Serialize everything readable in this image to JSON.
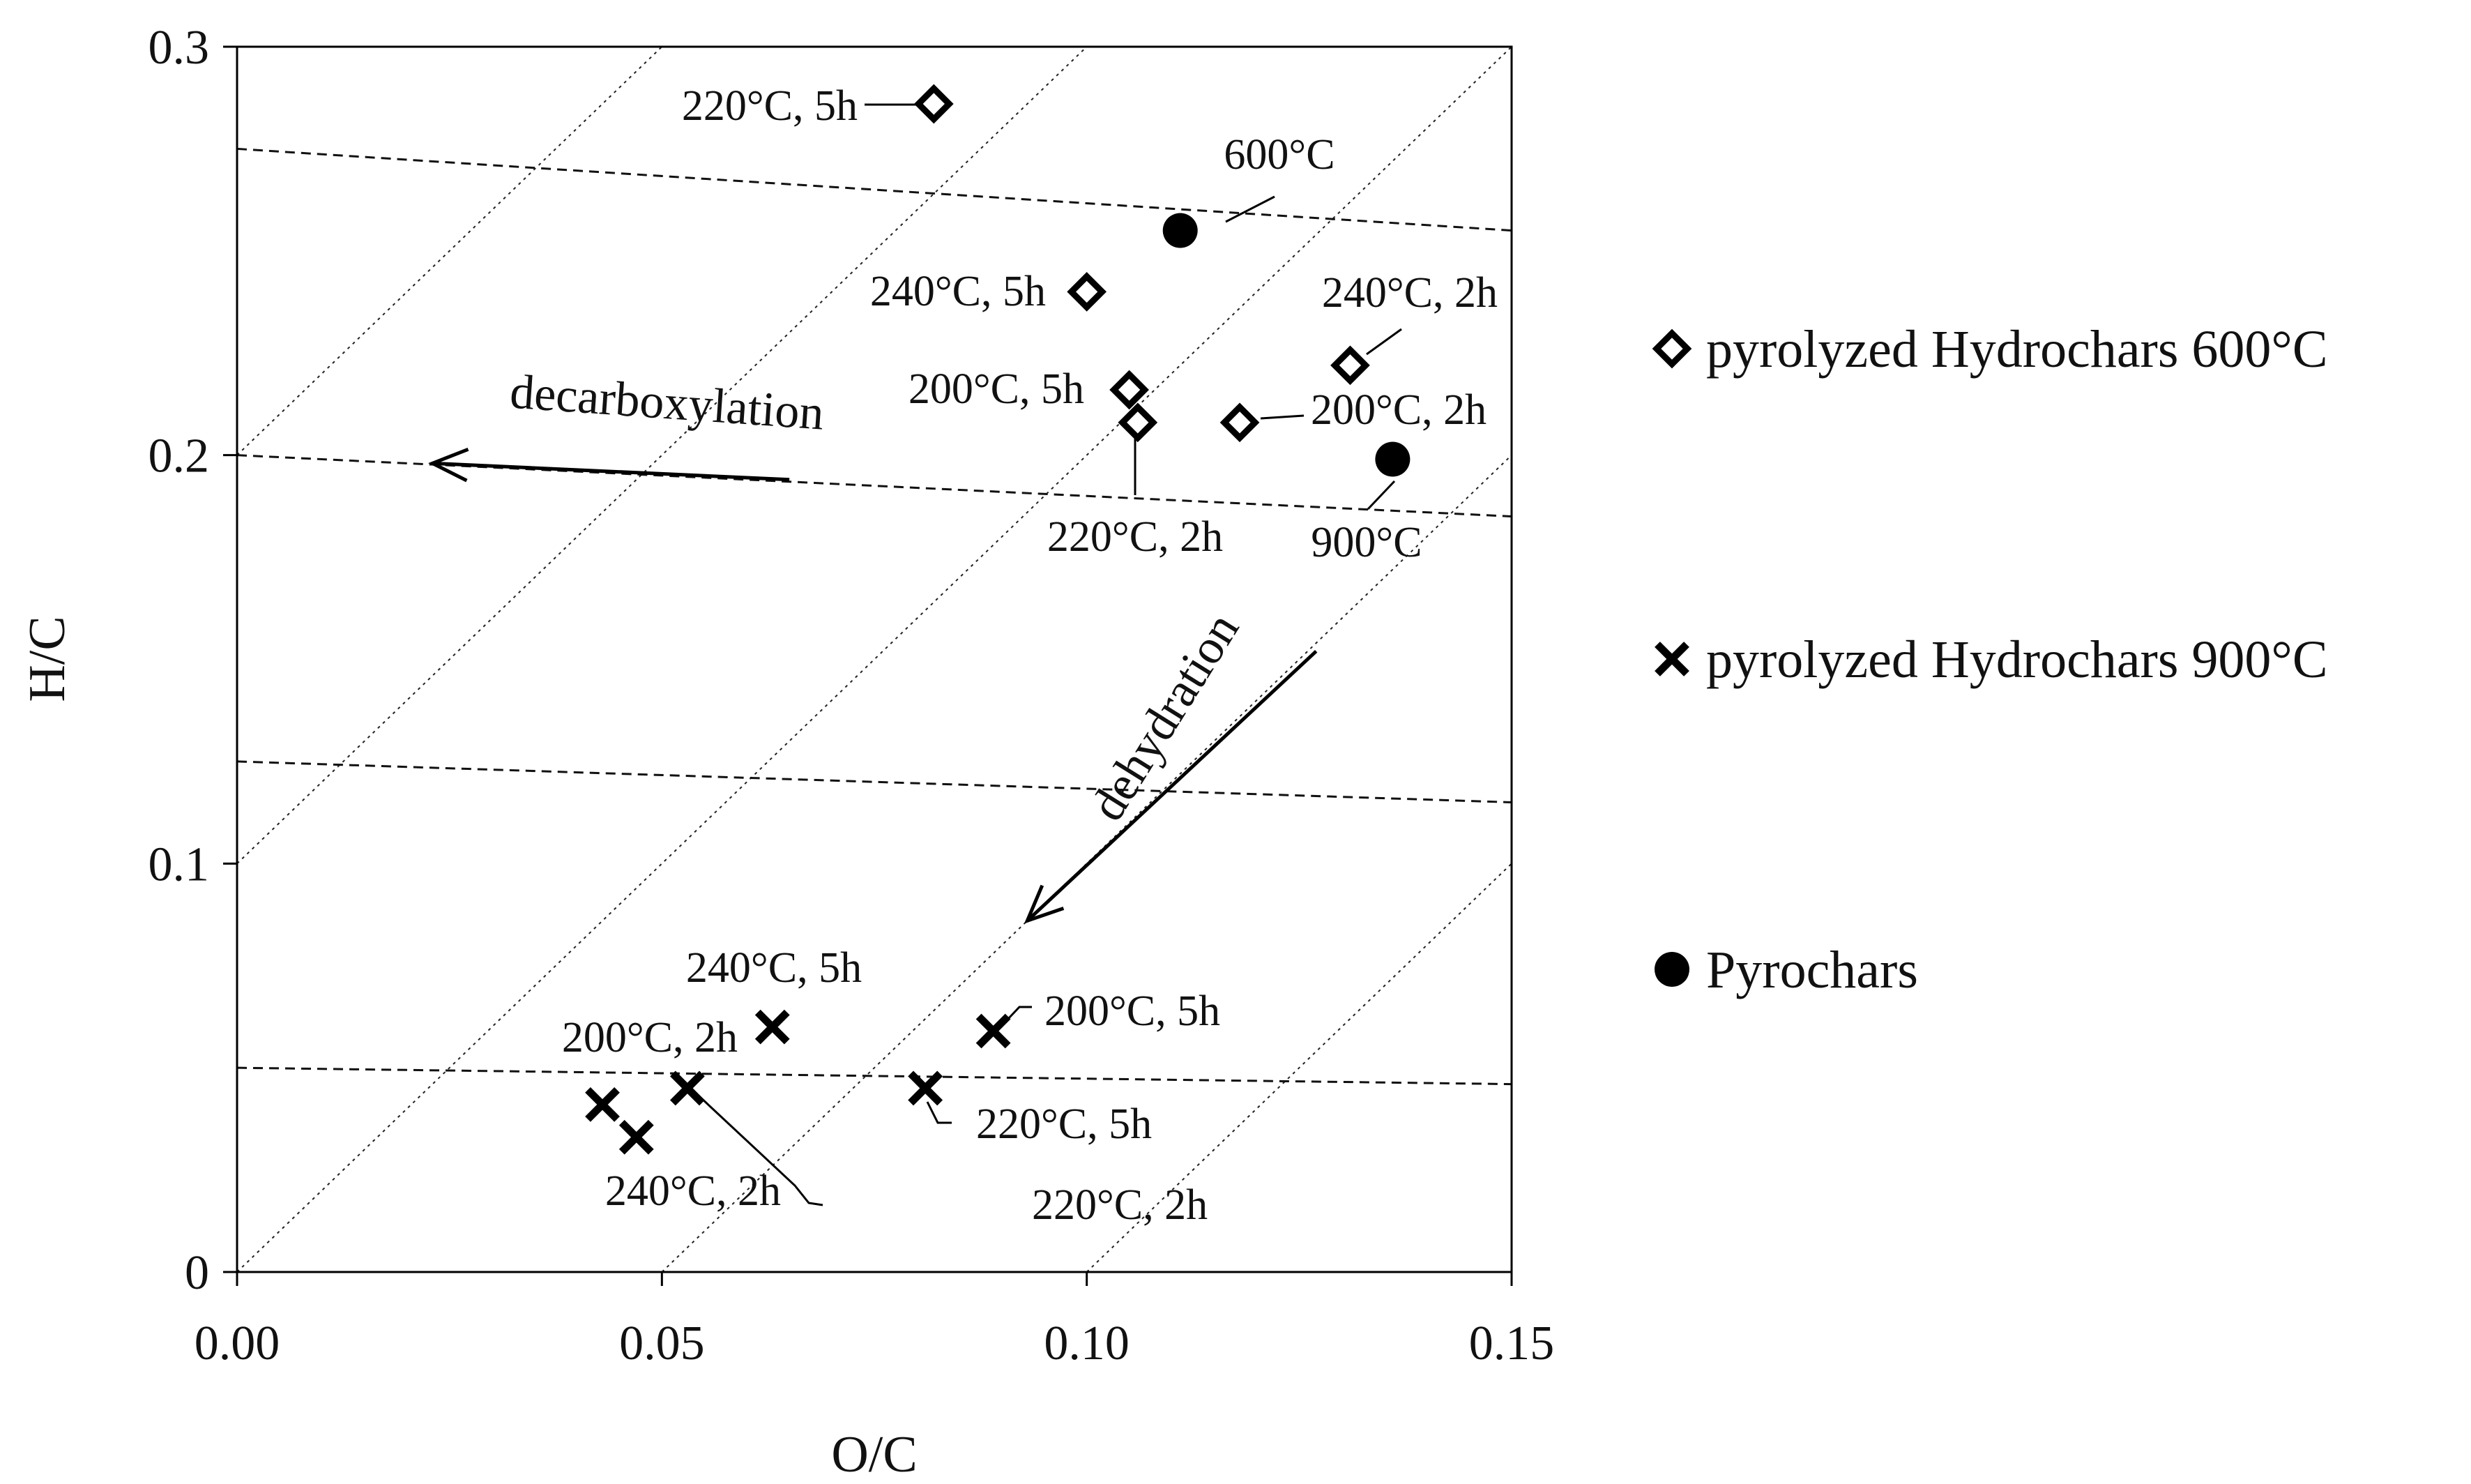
{
  "chart_data": {
    "type": "scatter",
    "title": "",
    "xlabel": "O/C",
    "ylabel": "H/C",
    "xlim": [
      0,
      0.15
    ],
    "ylim": [
      0,
      0.3
    ],
    "xticks": [
      0.0,
      0.05,
      0.1,
      0.15
    ],
    "xtick_labels": [
      "0.00",
      "0.05",
      "0.10",
      "0.15"
    ],
    "yticks": [
      0,
      0.1,
      0.2,
      0.3
    ],
    "ytick_labels": [
      "0",
      "0.1",
      "0.2",
      "0.3"
    ],
    "legend_position": "right",
    "series": [
      {
        "name": "pyrolyzed Hydrochars 600°C",
        "marker": "diamond",
        "points": [
          {
            "x": 0.082,
            "y": 0.286,
            "label": "220°C, 5h"
          },
          {
            "x": 0.1,
            "y": 0.24,
            "label": "240°C, 5h"
          },
          {
            "x": 0.105,
            "y": 0.216,
            "label": "200°C, 5h"
          },
          {
            "x": 0.106,
            "y": 0.208,
            "label": "220°C, 2h"
          },
          {
            "x": 0.118,
            "y": 0.208,
            "label": "200°C, 2h"
          },
          {
            "x": 0.131,
            "y": 0.222,
            "label": "240°C, 2h"
          }
        ]
      },
      {
        "name": "pyrolyzed Hydrochars 900°C",
        "marker": "x",
        "points": [
          {
            "x": 0.043,
            "y": 0.041,
            "label": "200°C, 2h"
          },
          {
            "x": 0.047,
            "y": 0.033,
            "label": "240°C, 2h"
          },
          {
            "x": 0.053,
            "y": 0.045,
            "label": "220°C, 2h"
          },
          {
            "x": 0.063,
            "y": 0.06,
            "label": "240°C, 5h"
          },
          {
            "x": 0.081,
            "y": 0.045,
            "label": "220°C, 5h"
          },
          {
            "x": 0.089,
            "y": 0.059,
            "label": "200°C, 5h"
          }
        ]
      },
      {
        "name": "Pyrochars",
        "marker": "circle",
        "points": [
          {
            "x": 0.111,
            "y": 0.255,
            "label": "600°C"
          },
          {
            "x": 0.136,
            "y": 0.199,
            "label": "900°C"
          }
        ]
      }
    ],
    "reference_lines": {
      "dehydration_slope2": [
        {
          "from": [
            0,
            0
          ],
          "to": [
            0.15,
            0.3
          ]
        },
        {
          "from": [
            0,
            0.1
          ],
          "to": [
            0.1,
            0.3
          ]
        },
        {
          "from": [
            0,
            0.2
          ],
          "to": [
            0.05,
            0.3
          ]
        },
        {
          "from": [
            0.05,
            0
          ],
          "to": [
            0.15,
            0.2
          ]
        },
        {
          "from": [
            0.1,
            0
          ],
          "to": [
            0.15,
            0.1
          ]
        }
      ],
      "decarboxylation_dashed": [
        {
          "from": [
            0,
            0.275
          ],
          "to": [
            0.15,
            0.255
          ]
        },
        {
          "from": [
            0,
            0.2
          ],
          "to": [
            0.15,
            0.185
          ]
        },
        {
          "from": [
            0,
            0.125
          ],
          "to": [
            0.15,
            0.115
          ]
        },
        {
          "from": [
            0,
            0.05
          ],
          "to": [
            0.15,
            0.046
          ]
        }
      ]
    },
    "annotations": [
      {
        "text": "decarboxylation",
        "arrow_from": [
          0.065,
          0.194
        ],
        "arrow_to": [
          0.023,
          0.198
        ]
      },
      {
        "text": "dehydration",
        "arrow_from": [
          0.127,
          0.152
        ],
        "arrow_to": [
          0.093,
          0.086
        ]
      }
    ]
  }
}
